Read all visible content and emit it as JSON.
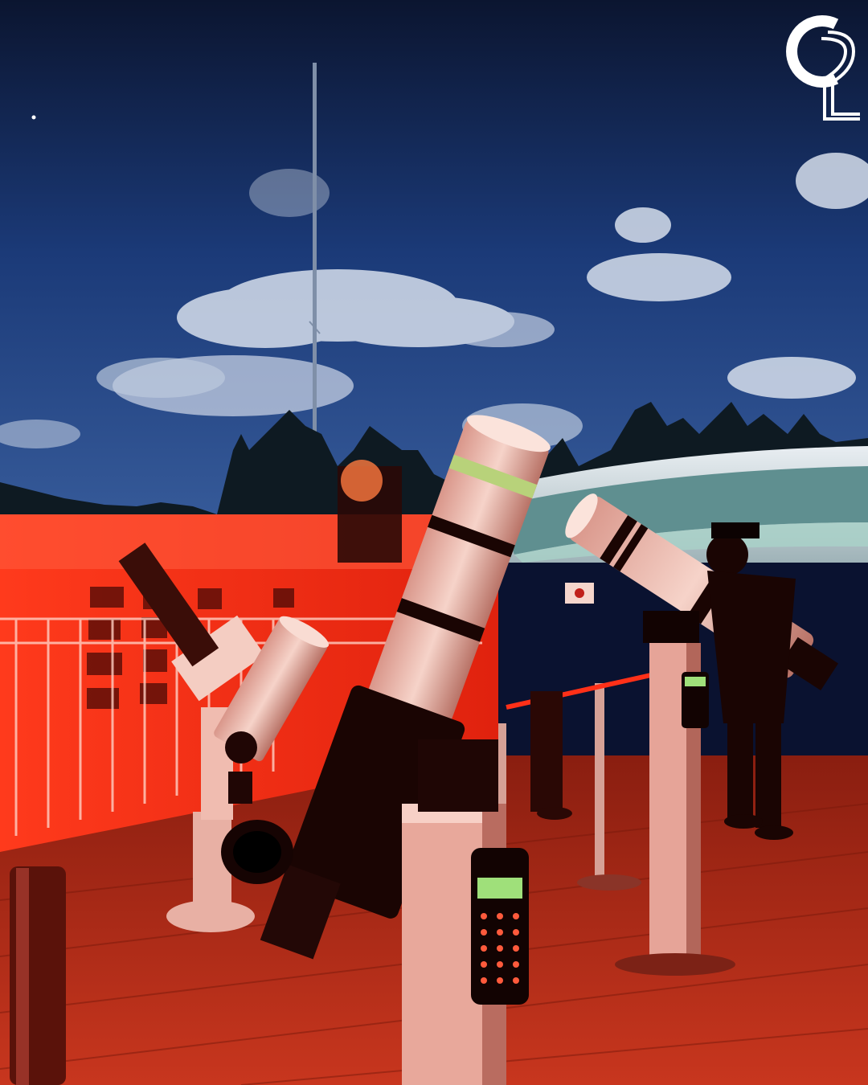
{
  "photo": {
    "subject": "observatory-rooftop-telescopes-under-red-light",
    "palette": {
      "sky_top": "#0b1530",
      "sky_mid": "#1b3a78",
      "sky_low": "#3a5f9e",
      "cloud": "#dfe6f2",
      "tree": "#0e1a22",
      "red_light": "#ff2a14",
      "deck": "#c8361e",
      "tube": "#f1c7bd",
      "display_green": "#9fe07a",
      "logo": "#ffffff"
    },
    "icons": {
      "logo": "o2-logo-icon",
      "hand_controller": "hand-controller-icon"
    }
  }
}
